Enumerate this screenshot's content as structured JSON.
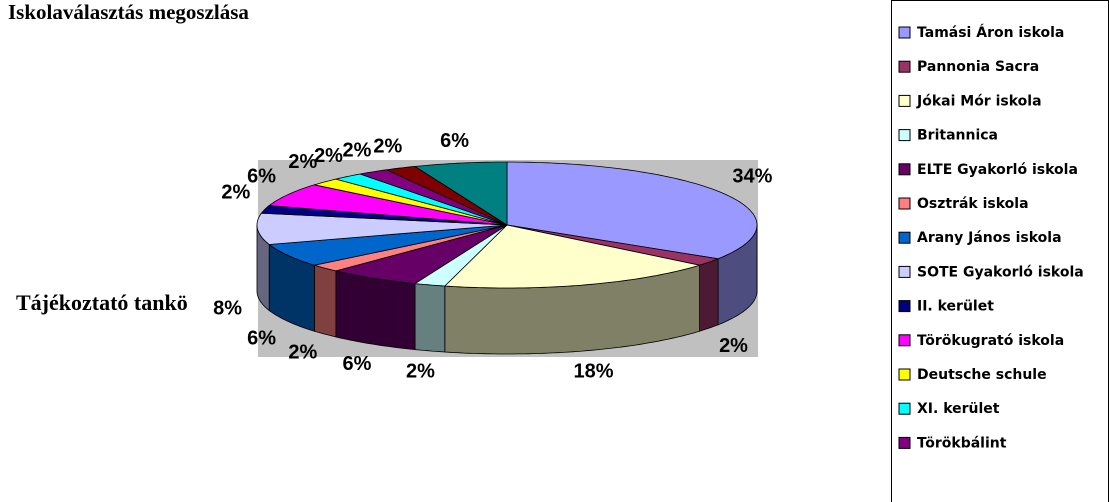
{
  "chart_data": {
    "type": "pie3d",
    "title": "Iskolaválasztás megoszlása",
    "annotation": "Tájékoztató tankö",
    "categories": [
      "Tamási Áron iskola",
      "Pannonia Sacra",
      "Jókai Mór iskola",
      "Britannica",
      "ELTE Gyakorló iskola",
      "Osztrák iskola",
      "Arany János iskola",
      "SOTE Gyakorló iskola",
      "II. kerület",
      "Törökugrató iskola",
      "Deutsche schule",
      "XI. kerület",
      "Törökbálint",
      null,
      null
    ],
    "values": [
      34,
      2,
      18,
      2,
      6,
      2,
      6,
      8,
      2,
      6,
      2,
      2,
      2,
      2,
      6
    ],
    "value_labels": [
      "34%",
      "2%",
      "18%",
      "2%",
      "6%",
      "2%",
      "6%",
      "8%",
      "2%",
      "6%",
      "2%",
      "2%",
      "2%",
      "2%",
      "6%"
    ],
    "colors": [
      "#9999ff",
      "#993366",
      "#ffffcc",
      "#ccffff",
      "#660066",
      "#ff8080",
      "#0066cc",
      "#ccccff",
      "#000080",
      "#ff00ff",
      "#ffff00",
      "#00ffff",
      "#800080",
      "#800000",
      "#008080"
    ]
  }
}
